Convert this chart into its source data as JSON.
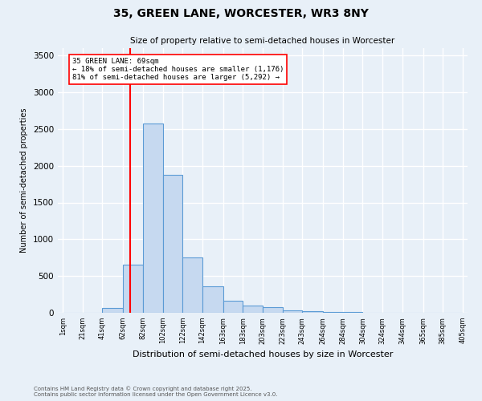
{
  "title1": "35, GREEN LANE, WORCESTER, WR3 8NY",
  "title2": "Size of property relative to semi-detached houses in Worcester",
  "xlabel": "Distribution of semi-detached houses by size in Worcester",
  "ylabel": "Number of semi-detached properties",
  "footnote1": "Contains HM Land Registry data © Crown copyright and database right 2025.",
  "footnote2": "Contains public sector information licensed under the Open Government Licence v3.0.",
  "annotation_line1": "35 GREEN LANE: 69sqm",
  "annotation_line2": "← 18% of semi-detached houses are smaller (1,176)",
  "annotation_line3": "81% of semi-detached houses are larger (5,292) →",
  "bin_labels": [
    "1sqm",
    "21sqm",
    "41sqm",
    "62sqm",
    "82sqm",
    "102sqm",
    "122sqm",
    "142sqm",
    "163sqm",
    "183sqm",
    "203sqm",
    "223sqm",
    "243sqm",
    "264sqm",
    "284sqm",
    "304sqm",
    "324sqm",
    "344sqm",
    "365sqm",
    "385sqm",
    "405sqm"
  ],
  "bin_edges": [
    1,
    21,
    41,
    62,
    82,
    102,
    122,
    142,
    163,
    183,
    203,
    223,
    243,
    264,
    284,
    304,
    324,
    344,
    365,
    385,
    405
  ],
  "bar_heights": [
    0,
    0,
    70,
    650,
    2580,
    1880,
    750,
    360,
    160,
    100,
    80,
    35,
    25,
    10,
    15,
    5,
    0,
    5,
    0,
    0
  ],
  "bar_color": "#c6d9f0",
  "bar_edge_color": "#5b9bd5",
  "red_line_x": 69,
  "ylim": [
    0,
    3600
  ],
  "yticks": [
    0,
    500,
    1000,
    1500,
    2000,
    2500,
    3000,
    3500
  ],
  "background_color": "#e8f0f8",
  "grid_color": "#ffffff",
  "property_size": 69
}
